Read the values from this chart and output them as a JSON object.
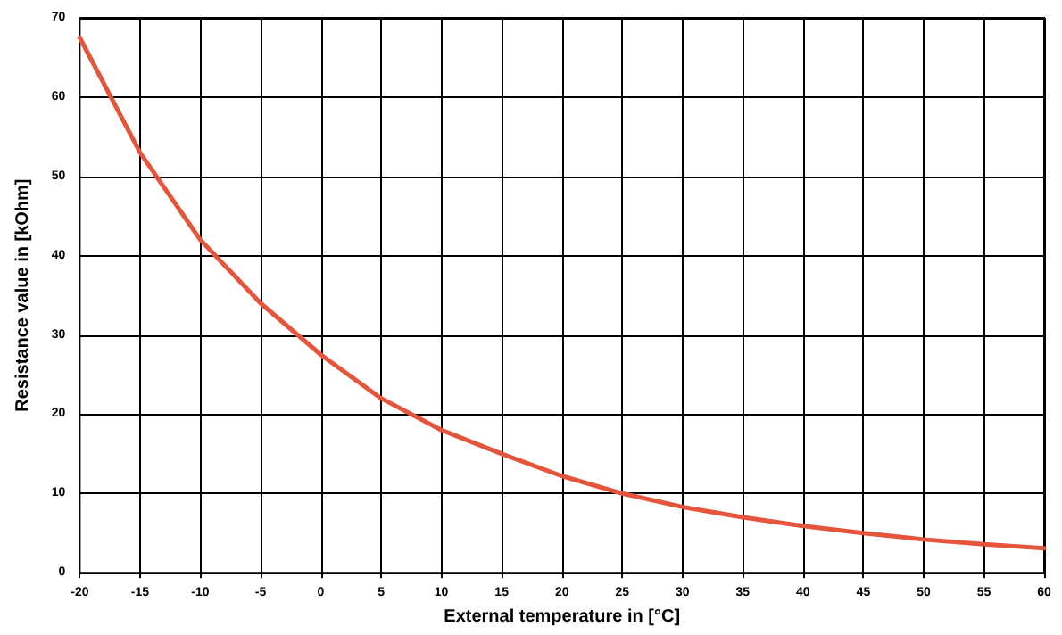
{
  "chart_data": {
    "type": "line",
    "xlabel": "External temperature in [°C]",
    "ylabel": "Resistance value in [kOhm]",
    "x": [
      -20,
      -15,
      -10,
      -5,
      0,
      5,
      10,
      15,
      20,
      25,
      30,
      35,
      40,
      45,
      50,
      55,
      60
    ],
    "series": [
      {
        "color": "#e4553c",
        "values": [
          67.5,
          53,
          42,
          34,
          27.5,
          22,
          18,
          15,
          12.2,
          10,
          8.3,
          7,
          5.9,
          5,
          4.2,
          3.6,
          3.1
        ]
      }
    ],
    "xlim": [
      -20,
      60
    ],
    "xticks": [
      -20,
      -15,
      -10,
      -5,
      0,
      5,
      10,
      15,
      20,
      25,
      30,
      35,
      40,
      45,
      50,
      55,
      60
    ],
    "ylim": [
      0,
      70
    ],
    "yticks": [
      0,
      10,
      20,
      30,
      40,
      50,
      60,
      70
    ],
    "grid": true,
    "marker": "none",
    "line_style": "solid"
  }
}
